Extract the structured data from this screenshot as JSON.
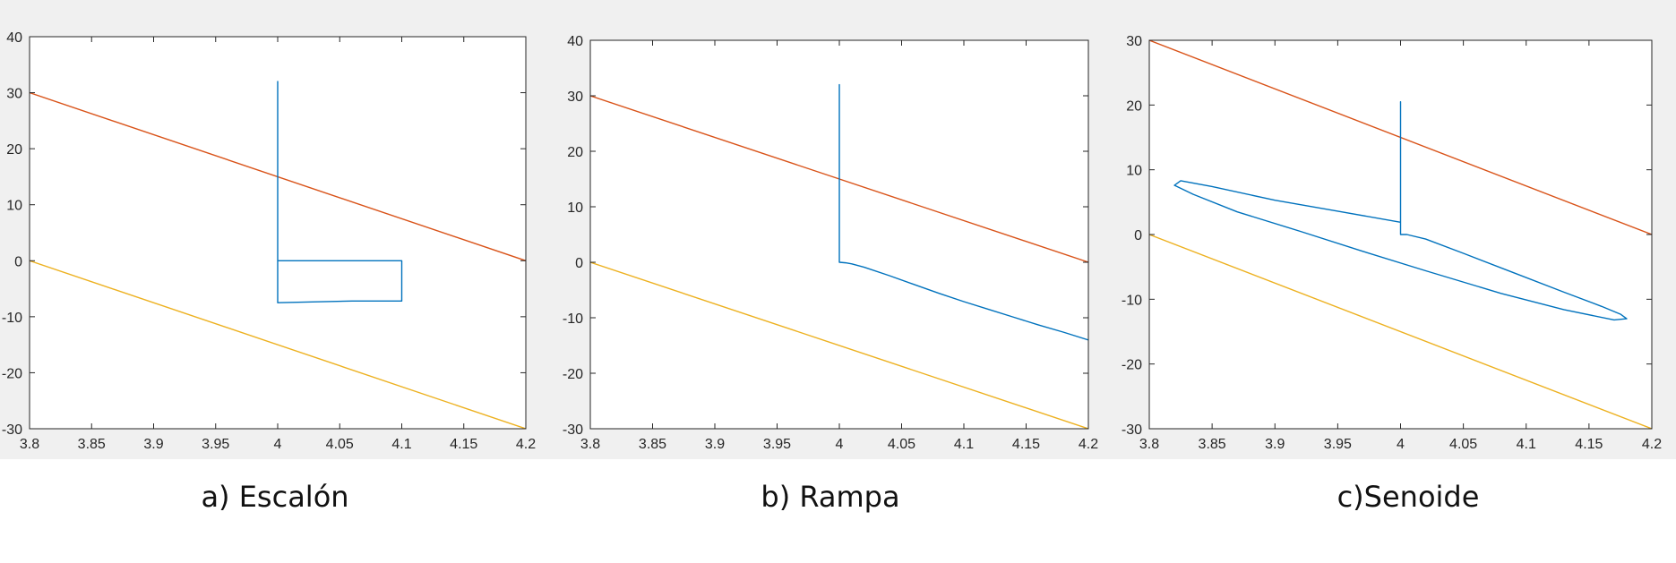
{
  "figure": {
    "background": "#f0f0f0",
    "axes_background": "#ffffff",
    "colors": {
      "series": "#0072bd",
      "upper": "#d95319",
      "lower": "#edb120",
      "axis": "#262626"
    }
  },
  "captions": [
    "a) Escalón",
    "b) Rampa",
    "c)Senoide"
  ],
  "chart_data": [
    {
      "type": "line",
      "title": "",
      "xlabel": "",
      "ylabel": "",
      "xlim": [
        3.8,
        4.2
      ],
      "ylim": [
        -30,
        40
      ],
      "xticks": [
        "3.8",
        "3.85",
        "3.9",
        "3.95",
        "4",
        "4.05",
        "4.1",
        "4.15",
        "4.2"
      ],
      "yticks": [
        "40",
        "30",
        "20",
        "10",
        "0",
        "-10",
        "-20",
        "-30"
      ],
      "grid": false,
      "legend": "none",
      "series": [
        {
          "color": "#d95319",
          "x": [
            3.8,
            4.2
          ],
          "y": [
            30,
            0
          ]
        },
        {
          "color": "#edb120",
          "x": [
            3.8,
            4.2
          ],
          "y": [
            0,
            -30
          ]
        },
        {
          "color": "#0072bd",
          "x": [
            4.0,
            4.0,
            4.1,
            4.1,
            4.06,
            4.0,
            4.0
          ],
          "y": [
            32,
            0,
            0,
            -7.2,
            -7.2,
            -7.5,
            0
          ]
        }
      ]
    },
    {
      "type": "line",
      "title": "",
      "xlabel": "",
      "ylabel": "",
      "xlim": [
        3.8,
        4.2
      ],
      "ylim": [
        -30,
        40
      ],
      "xticks": [
        "3.8",
        "3.85",
        "3.9",
        "3.95",
        "4",
        "4.05",
        "4.1",
        "4.15",
        "4.2"
      ],
      "yticks": [
        "40",
        "30",
        "20",
        "10",
        "0",
        "-10",
        "-20",
        "-30"
      ],
      "grid": false,
      "legend": "none",
      "series": [
        {
          "color": "#d95319",
          "x": [
            3.8,
            4.2
          ],
          "y": [
            30,
            0
          ]
        },
        {
          "color": "#edb120",
          "x": [
            3.8,
            4.2
          ],
          "y": [
            0,
            -30
          ]
        },
        {
          "color": "#0072bd",
          "x": [
            4.0,
            4.0,
            4.005,
            4.01,
            4.02,
            4.04,
            4.06,
            4.08,
            4.1,
            4.12,
            4.14,
            4.16,
            4.18,
            4.2
          ],
          "y": [
            32,
            0,
            -0.1,
            -0.3,
            -0.9,
            -2.4,
            -4.0,
            -5.6,
            -7.1,
            -8.5,
            -9.9,
            -11.3,
            -12.6,
            -14.0
          ]
        }
      ]
    },
    {
      "type": "line",
      "title": "",
      "xlabel": "",
      "ylabel": "",
      "xlim": [
        3.8,
        4.2
      ],
      "ylim": [
        -30,
        30
      ],
      "xticks": [
        "3.8",
        "3.85",
        "3.9",
        "3.95",
        "4",
        "4.05",
        "4.1",
        "4.15",
        "4.2"
      ],
      "yticks": [
        "30",
        "20",
        "10",
        "0",
        "-10",
        "-20",
        "-30"
      ],
      "grid": false,
      "legend": "none",
      "series": [
        {
          "color": "#d95319",
          "x": [
            3.8,
            4.2
          ],
          "y": [
            30,
            0
          ]
        },
        {
          "color": "#edb120",
          "x": [
            3.8,
            4.2
          ],
          "y": [
            0,
            -30
          ]
        },
        {
          "color": "#0072bd",
          "x": [
            4.0,
            4.0,
            4.005,
            4.02,
            4.05,
            4.09,
            4.13,
            4.16,
            4.175,
            4.18,
            4.17,
            4.13,
            4.08,
            4.02,
            3.97,
            3.92,
            3.87,
            3.835,
            3.82,
            3.825,
            3.85,
            3.9,
            3.95,
            4.0,
            4.0
          ],
          "y": [
            20.5,
            0,
            0,
            -0.7,
            -2.9,
            -5.9,
            -8.9,
            -11.1,
            -12.3,
            -13.0,
            -13.2,
            -11.6,
            -9.1,
            -5.6,
            -2.6,
            0.5,
            3.5,
            6.2,
            7.6,
            8.3,
            7.4,
            5.3,
            3.6,
            1.9,
            0
          ]
        }
      ]
    }
  ]
}
